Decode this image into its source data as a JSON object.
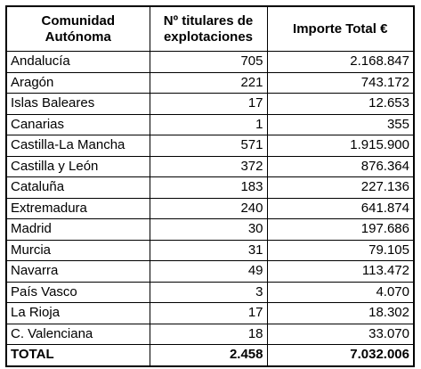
{
  "table": {
    "header": [
      [
        "Comunidad",
        "Autónoma"
      ],
      [
        "Nº titulares de",
        "explotaciones"
      ],
      [
        "Importe Total €"
      ]
    ],
    "rows": [
      [
        "Andalucía",
        "705",
        "2.168.847"
      ],
      [
        "Aragón",
        "221",
        "743.172"
      ],
      [
        "Islas Baleares",
        "17",
        "12.653"
      ],
      [
        "Canarias",
        "1",
        "355"
      ],
      [
        "Castilla-La Mancha",
        "571",
        "1.915.900"
      ],
      [
        "Castilla y León",
        "372",
        "876.364"
      ],
      [
        "Cataluña",
        "183",
        "227.136"
      ],
      [
        "Extremadura",
        "240",
        "641.874"
      ],
      [
        "Madrid",
        "30",
        "197.686"
      ],
      [
        "Murcia",
        "31",
        "79.105"
      ],
      [
        "Navarra",
        "49",
        "113.472"
      ],
      [
        "País Vasco",
        "3",
        "4.070"
      ],
      [
        "La Rioja",
        "17",
        "18.302"
      ],
      [
        "C. Valenciana",
        "18",
        "33.070"
      ]
    ],
    "total": [
      "TOTAL",
      "2.458",
      "7.032.006"
    ]
  }
}
